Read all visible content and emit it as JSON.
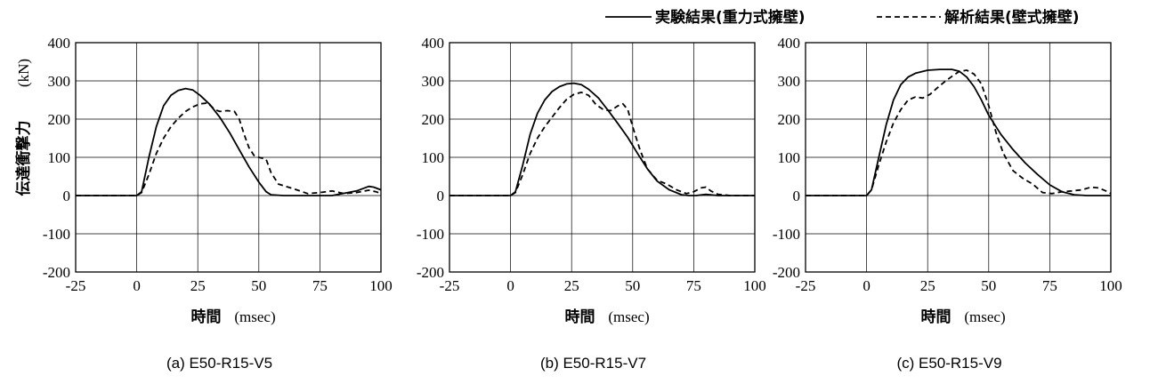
{
  "legend": {
    "experiment_label": "実験結果(重力式擁壁)",
    "analysis_label": "解析結果(壁式擁壁)"
  },
  "y_axis_label": "伝達衝撃力",
  "y_axis_unit": "(kN)",
  "x_axis_label": "時間",
  "x_axis_unit": "(msec)",
  "chart_data": [
    {
      "type": "line",
      "caption": "(a) E50-R15-V5",
      "xlim": [
        -25,
        100
      ],
      "ylim": [
        -200,
        400
      ],
      "xticks": [
        -25,
        0,
        25,
        50,
        75,
        100
      ],
      "yticks": [
        -200,
        -100,
        0,
        100,
        200,
        300,
        400
      ],
      "grid": true,
      "series": [
        {
          "name": "実験結果(重力式擁壁)",
          "style": "solid",
          "x": [
            -25,
            0,
            2,
            5,
            8,
            11,
            14,
            17,
            20,
            23,
            26,
            30,
            34,
            38,
            42,
            46,
            50,
            53,
            55,
            60,
            70,
            80,
            90,
            95,
            97,
            100
          ],
          "y": [
            0,
            0,
            10,
            100,
            180,
            235,
            262,
            275,
            280,
            276,
            262,
            238,
            205,
            165,
            120,
            75,
            35,
            10,
            2,
            0,
            0,
            0,
            12,
            24,
            22,
            15
          ]
        },
        {
          "name": "解析結果(壁式擁壁)",
          "style": "dashed",
          "x": [
            -25,
            0,
            2,
            5,
            8,
            11,
            14,
            17,
            20,
            23,
            26,
            29,
            32,
            34,
            37,
            40,
            42,
            44,
            46,
            48,
            50,
            53,
            55,
            58,
            62,
            66,
            70,
            75,
            80,
            85,
            90,
            95,
            98,
            100
          ],
          "y": [
            0,
            0,
            8,
            55,
            110,
            150,
            180,
            202,
            220,
            232,
            240,
            242,
            225,
            220,
            222,
            220,
            200,
            160,
            125,
            105,
            100,
            95,
            60,
            30,
            22,
            14,
            5,
            8,
            12,
            5,
            8,
            14,
            10,
            5
          ]
        }
      ]
    },
    {
      "type": "line",
      "caption": "(b) E50-R15-V7",
      "xlim": [
        -25,
        100
      ],
      "ylim": [
        -200,
        400
      ],
      "xticks": [
        -25,
        0,
        25,
        50,
        75,
        100
      ],
      "yticks": [
        -200,
        -100,
        0,
        100,
        200,
        300,
        400
      ],
      "grid": true,
      "series": [
        {
          "name": "実験結果(重力式擁壁)",
          "style": "solid",
          "x": [
            -25,
            0,
            2,
            5,
            8,
            11,
            14,
            17,
            20,
            23,
            26,
            29,
            32,
            36,
            40,
            44,
            48,
            52,
            56,
            60,
            65,
            70,
            73,
            76,
            80,
            85,
            90,
            100
          ],
          "y": [
            0,
            0,
            10,
            80,
            160,
            215,
            250,
            272,
            285,
            292,
            294,
            290,
            278,
            255,
            222,
            188,
            152,
            110,
            70,
            38,
            15,
            2,
            0,
            0,
            3,
            0,
            0,
            0
          ]
        },
        {
          "name": "解析結果(壁式擁壁)",
          "style": "dashed",
          "x": [
            -25,
            0,
            2,
            5,
            8,
            11,
            14,
            17,
            20,
            23,
            26,
            29,
            32,
            35,
            38,
            41,
            44,
            46,
            48,
            50,
            53,
            56,
            60,
            64,
            68,
            72,
            75,
            78,
            80,
            82,
            85,
            90,
            100
          ],
          "y": [
            0,
            0,
            8,
            55,
            110,
            150,
            180,
            205,
            230,
            252,
            265,
            270,
            262,
            238,
            225,
            222,
            235,
            240,
            225,
            180,
            120,
            70,
            40,
            30,
            15,
            5,
            10,
            20,
            22,
            12,
            3,
            0,
            0
          ]
        }
      ]
    },
    {
      "type": "line",
      "caption": "(c) E50-R15-V9",
      "xlim": [
        -25,
        100
      ],
      "ylim": [
        -200,
        400
      ],
      "xticks": [
        -25,
        0,
        25,
        50,
        75,
        100
      ],
      "yticks": [
        -200,
        -100,
        0,
        100,
        200,
        300,
        400
      ],
      "grid": true,
      "series": [
        {
          "name": "実験結果(重力式擁壁)",
          "style": "solid",
          "x": [
            -25,
            0,
            2,
            5,
            8,
            11,
            14,
            17,
            20,
            25,
            30,
            35,
            38,
            41,
            44,
            47,
            50,
            55,
            60,
            65,
            70,
            75,
            80,
            85,
            90,
            100
          ],
          "y": [
            0,
            0,
            15,
            100,
            185,
            250,
            290,
            310,
            320,
            328,
            330,
            330,
            325,
            310,
            285,
            250,
            210,
            160,
            120,
            85,
            55,
            28,
            10,
            2,
            0,
            0
          ]
        },
        {
          "name": "解析結果(壁式擁壁)",
          "style": "dashed",
          "x": [
            -25,
            0,
            2,
            5,
            8,
            11,
            14,
            17,
            20,
            23,
            26,
            29,
            32,
            35,
            38,
            41,
            44,
            47,
            50,
            53,
            56,
            60,
            64,
            68,
            72,
            76,
            80,
            84,
            88,
            92,
            95,
            98,
            100
          ],
          "y": [
            0,
            0,
            15,
            80,
            140,
            190,
            225,
            250,
            258,
            255,
            265,
            282,
            298,
            312,
            325,
            328,
            318,
            292,
            235,
            165,
            110,
            65,
            45,
            30,
            8,
            5,
            10,
            12,
            15,
            22,
            20,
            12,
            5
          ]
        }
      ]
    }
  ]
}
